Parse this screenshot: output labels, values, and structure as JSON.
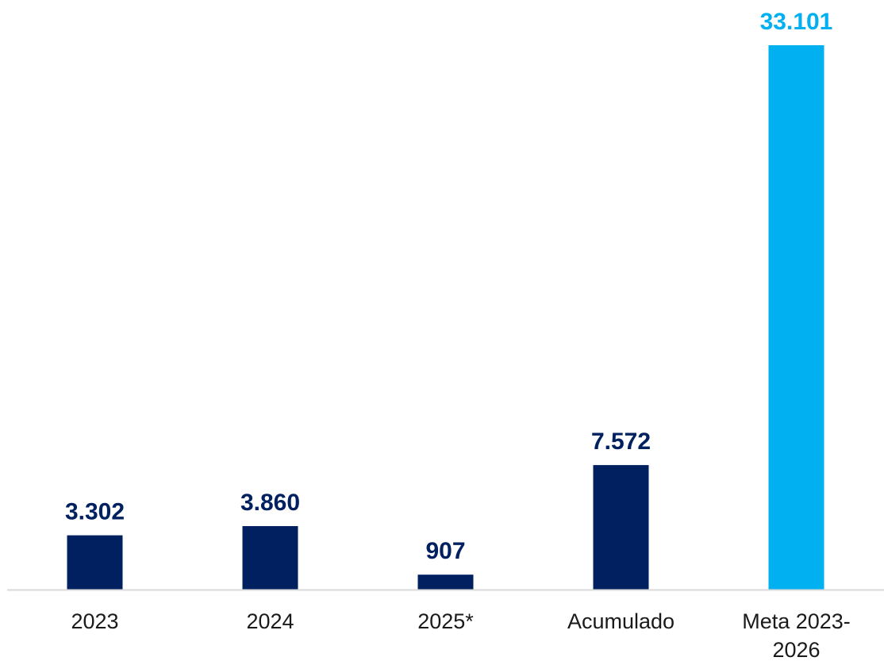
{
  "chart_data": {
    "type": "bar",
    "title": "",
    "xlabel": "",
    "ylabel": "",
    "ylim": [
      0,
      33101
    ],
    "grid": false,
    "legend": "none",
    "categories": [
      [
        "2023"
      ],
      [
        "2024"
      ],
      [
        "2025*"
      ],
      [
        "Acumulado"
      ],
      [
        "Meta 2023-",
        "2026"
      ]
    ],
    "values": [
      3302,
      3860,
      907,
      7572,
      33101
    ],
    "value_labels": [
      "3.302",
      "3.860",
      "907",
      "7.572",
      "33.101"
    ],
    "colors": {
      "default_bar": "#002060",
      "highlight_bar": "#00B0F0",
      "default_label": "#002060",
      "highlight_label": "#00B0F0",
      "axis_line": "#d9d9d9"
    },
    "highlight_index": 4
  }
}
